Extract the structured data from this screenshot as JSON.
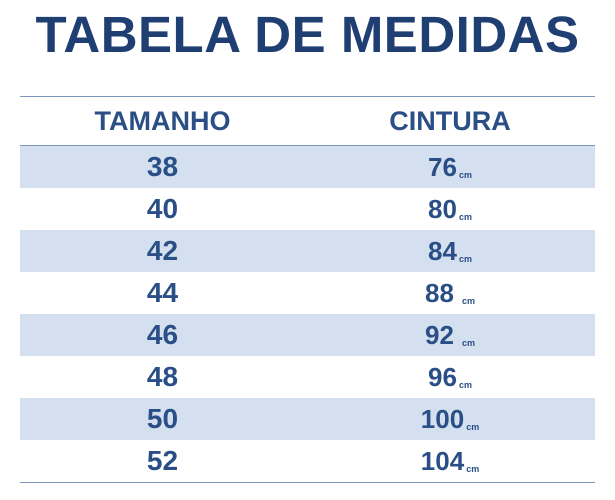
{
  "title": "TABELA DE MEDIDAS",
  "colors": {
    "title": "#1f3f73",
    "text": "#2a4f86",
    "stripe": "#d4dfef",
    "rule": "#7b96bf"
  },
  "table": {
    "headers": {
      "size": "TAMANHO",
      "waist": "CINTURA"
    },
    "unit": "cm",
    "rows": [
      {
        "size": "38",
        "waist": "76"
      },
      {
        "size": "40",
        "waist": "80"
      },
      {
        "size": "42",
        "waist": "84"
      },
      {
        "size": "44",
        "waist": "88"
      },
      {
        "size": "46",
        "waist": "92"
      },
      {
        "size": "48",
        "waist": "96"
      },
      {
        "size": "50",
        "waist": "100"
      },
      {
        "size": "52",
        "waist": "104"
      }
    ]
  }
}
